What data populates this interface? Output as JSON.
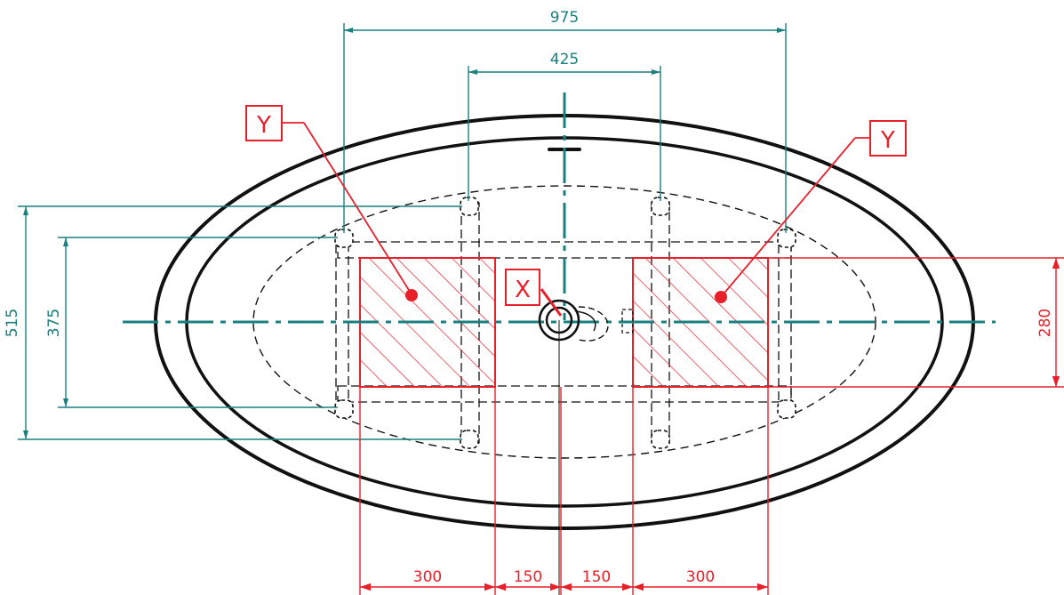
{
  "colors": {
    "teal": "#1a7f7f",
    "red": "#e8202a",
    "black": "#111111",
    "background": "#ffffff"
  },
  "dimensions": {
    "overall_width": "975",
    "inner_width": "425",
    "overall_depth": "515",
    "inner_depth": "375",
    "support_depth": "280",
    "left_support_width": "300",
    "left_gap": "150",
    "right_gap": "150",
    "right_support_width": "300"
  },
  "labels": {
    "support_left": "Y",
    "support_right": "Y",
    "drain": "X"
  }
}
